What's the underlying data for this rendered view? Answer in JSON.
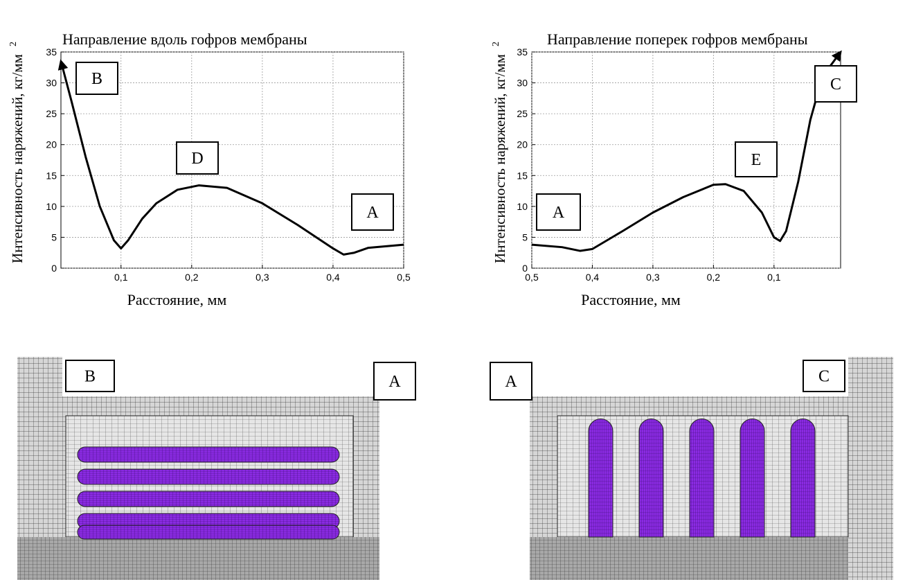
{
  "chart_data": [
    {
      "type": "line",
      "title": "Направление вдоль гофров мембраны",
      "xlabel": "Расстояние, мм",
      "ylabel": "Интенсивность наряжений, кг/мм",
      "ylabel_sup": "2",
      "x": [
        0.015,
        0.03,
        0.05,
        0.07,
        0.09,
        0.1,
        0.11,
        0.13,
        0.15,
        0.18,
        0.21,
        0.25,
        0.3,
        0.35,
        0.4,
        0.415,
        0.43,
        0.45,
        0.5
      ],
      "values": [
        33.5,
        27,
        18,
        10,
        4.5,
        3.2,
        4.5,
        8,
        10.5,
        12.7,
        13.4,
        13,
        10.5,
        7,
        3.2,
        2.2,
        2.5,
        3.3,
        3.8
      ],
      "color": "#000000",
      "xlim": [
        0.015,
        0.5
      ],
      "xticks": [
        {
          "value": 0.1,
          "label": "0,1"
        },
        {
          "value": 0.2,
          "label": "0,2"
        },
        {
          "value": 0.3,
          "label": "0,3"
        },
        {
          "value": 0.4,
          "label": "0,4"
        },
        {
          "value": 0.5,
          "label": "0,5"
        }
      ],
      "ylim": [
        0,
        35
      ],
      "yticks": [
        0,
        5,
        10,
        15,
        20,
        25,
        30,
        35
      ],
      "grid": true,
      "annotations": [
        "B",
        "D",
        "A"
      ]
    },
    {
      "type": "line",
      "title": "Направление поперек гофров мембраны",
      "xlabel": "Расстояние, мм",
      "ylabel": "Интенсивность наряжений, кг/мм",
      "ylabel_sup": "2",
      "x": [
        0.5,
        0.45,
        0.42,
        0.4,
        0.35,
        0.3,
        0.25,
        0.2,
        0.18,
        0.15,
        0.12,
        0.1,
        0.09,
        0.08,
        0.06,
        0.04,
        0.02,
        -0.01
      ],
      "values": [
        3.8,
        3.4,
        2.8,
        3.1,
        6,
        9,
        11.5,
        13.5,
        13.6,
        12.5,
        9,
        5,
        4.4,
        6,
        14,
        24,
        31,
        35
      ],
      "color": "#000000",
      "xlim": [
        0.5,
        -0.01
      ],
      "xticks": [
        {
          "value": 0.5,
          "label": "0,5"
        },
        {
          "value": 0.4,
          "label": "0,4"
        },
        {
          "value": 0.3,
          "label": "0,3"
        },
        {
          "value": 0.2,
          "label": "0,2"
        },
        {
          "value": 0.1,
          "label": "0,1"
        }
      ],
      "ylim": [
        0,
        35
      ],
      "yticks": [
        0,
        5,
        10,
        15,
        20,
        25,
        30,
        35
      ],
      "grid": true,
      "annotations": [
        "A",
        "E",
        "C"
      ]
    }
  ],
  "mesh_figures": [
    {
      "labels": [
        "B",
        "A"
      ]
    },
    {
      "labels": [
        "A",
        "C"
      ]
    }
  ]
}
